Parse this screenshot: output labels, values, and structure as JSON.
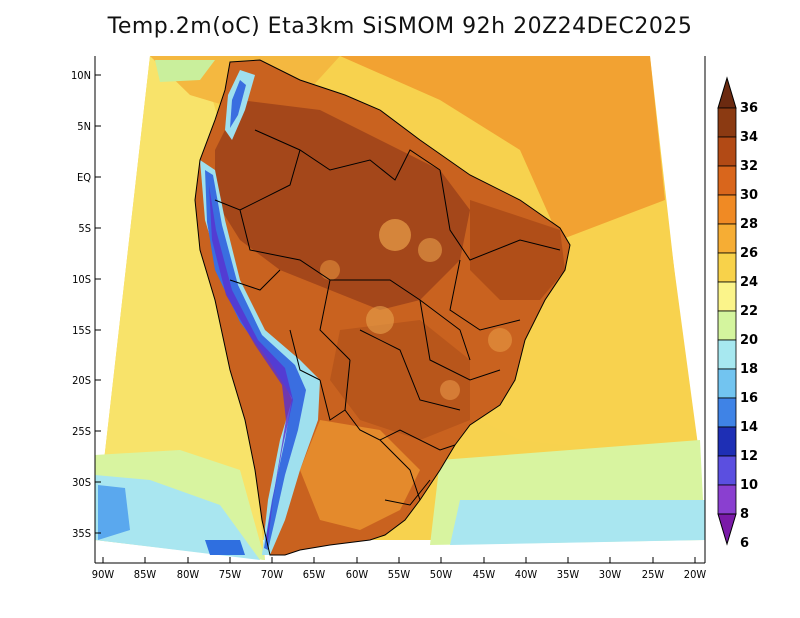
{
  "title": "Temp.2m(oC) Eta3km SiSMOM 92h 20Z24DEC2025",
  "latitude_labels": [
    "10N",
    "5N",
    "EQ",
    "5S",
    "10S",
    "15S",
    "20S",
    "25S",
    "30S",
    "35S"
  ],
  "longitude_labels": [
    "90W",
    "85W",
    "80W",
    "75W",
    "70W",
    "65W",
    "60W",
    "55W",
    "50W",
    "45W",
    "40W",
    "35W",
    "30W",
    "25W",
    "20W"
  ],
  "colorbar": {
    "labels": [
      "36",
      "34",
      "32",
      "30",
      "28",
      "26",
      "24",
      "22",
      "20",
      "18",
      "16",
      "14",
      "12",
      "10",
      "8",
      "6"
    ],
    "colors": [
      "#6b2a10",
      "#8b3a12",
      "#b24a15",
      "#d9661c",
      "#f08a24",
      "#f6ad34",
      "#f8d24a",
      "#fbf48a",
      "#d4f59e",
      "#a7e8f0",
      "#72c4f0",
      "#3f83e6",
      "#1e2fb5",
      "#5b4fe0",
      "#8a3fd0",
      "#7a1aa8"
    ]
  }
}
